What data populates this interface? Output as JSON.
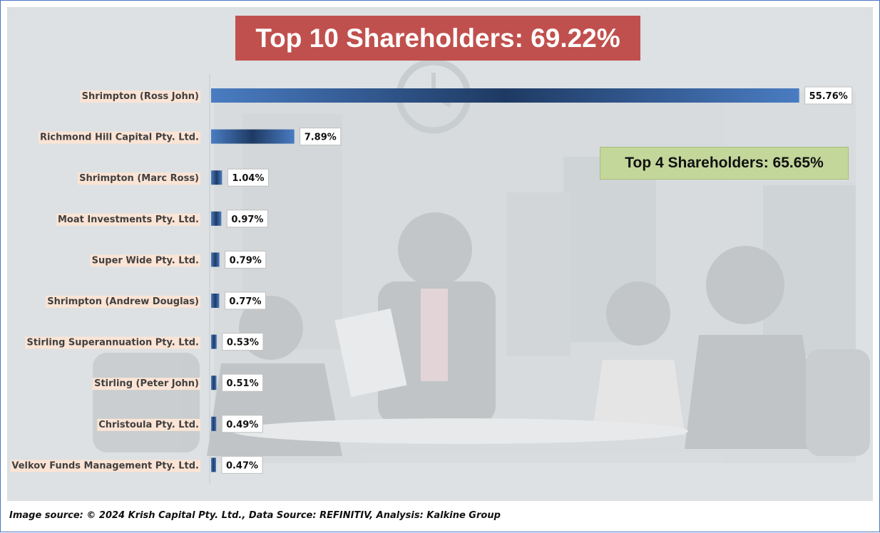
{
  "title": "Top 10 Shareholders: 69.22%",
  "subtitle": "Top 4 Shareholders: 65.65%",
  "footer": "Image source: © 2024 Krish Capital Pty. Ltd., Data Source: REFINITIV, Analysis: Kalkine Group",
  "colors": {
    "bar_light": "#4a7cc2",
    "bar_dark": "#1e3a63",
    "title_bg": "#c0504d",
    "subtitle_bg": "#c4d79b",
    "label_highlight": "#fbe4d5"
  },
  "chart_data": {
    "type": "bar",
    "orientation": "horizontal",
    "categories": [
      "Shrimpton (Ross John)",
      "Richmond Hill Capital Pty. Ltd.",
      "Shrimpton (Marc Ross)",
      "Moat Investments Pty. Ltd.",
      "Super Wide Pty. Ltd.",
      "Shrimpton (Andrew Douglas)",
      "Stirling Superannuation Pty. Ltd.",
      "Stirling (Peter John)",
      "Christoula Pty. Ltd.",
      "Velkov Funds Management Pty. Ltd."
    ],
    "values": [
      55.76,
      7.89,
      1.04,
      0.97,
      0.79,
      0.77,
      0.53,
      0.51,
      0.49,
      0.47
    ],
    "value_labels": [
      "55.76%",
      "7.89%",
      "1.04%",
      "0.97%",
      "0.79%",
      "0.77%",
      "0.53%",
      "0.51%",
      "0.49%",
      "0.47%"
    ],
    "unit": "%",
    "xlim": [
      0,
      57
    ],
    "grid": false,
    "legend": "none"
  }
}
